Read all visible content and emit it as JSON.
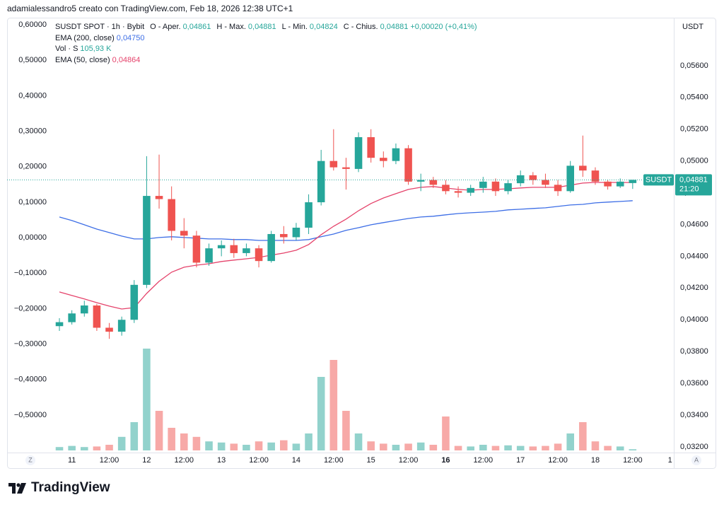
{
  "chart_data": {
    "type": "candlestick",
    "credit": "adamialessandro5 creato con TradingView.com, Feb 18, 2026 12:38 UTC+1",
    "title": "SUSDT SPOT · 1h · Bybit",
    "ohlc_legend": [
      {
        "key": "O - Aper.",
        "label": "0,04861"
      },
      {
        "key": "H - Max.",
        "label": "0,04881"
      },
      {
        "key": "L - Min.",
        "label": "0,04824"
      },
      {
        "key": "C - Chius.",
        "label": "0,04881"
      }
    ],
    "change_label": "+0,00020 (+0,41%)",
    "volume_legend": {
      "name": "Vol · S",
      "label": "105,93 K"
    },
    "up_color": "#26a69a",
    "down_color": "#ef5350",
    "volume_up_color": "#92d2cc",
    "volume_down_color": "#f7a9a7",
    "open": [
      0.0396,
      0.03985,
      0.0404,
      0.0409,
      0.0395,
      0.03925,
      0.04,
      0.0422,
      0.0478,
      0.0476,
      0.0456,
      0.0453,
      0.0436,
      0.0445,
      0.0447,
      0.0442,
      0.0445,
      0.0437,
      0.0454,
      0.0452,
      0.0458,
      0.0474,
      0.05,
      0.0496,
      0.0495,
      0.0515,
      0.0502,
      0.05,
      0.0508,
      0.0487,
      0.0488,
      0.0485,
      0.0481,
      0.048,
      0.0483,
      0.0487,
      0.0481,
      0.0486,
      0.0491,
      0.0488,
      0.0485,
      0.0481,
      0.0497,
      0.0494,
      0.0487,
      0.0484,
      0.04861
    ],
    "high": [
      0.0401,
      0.0406,
      0.0412,
      0.041,
      0.0398,
      0.0402,
      0.0425,
      0.0503,
      0.0504,
      0.0484,
      0.0464,
      0.0456,
      0.0448,
      0.045,
      0.0451,
      0.0448,
      0.0447,
      0.0456,
      0.0459,
      0.0461,
      0.0479,
      0.0507,
      0.052,
      0.0502,
      0.0518,
      0.052,
      0.0506,
      0.0511,
      0.051,
      0.0492,
      0.049,
      0.0488,
      0.0484,
      0.0485,
      0.049,
      0.0489,
      0.0488,
      0.0494,
      0.0493,
      0.0492,
      0.0488,
      0.05,
      0.0516,
      0.0496,
      0.0488,
      0.0489,
      0.04881
    ],
    "low": [
      0.0393,
      0.0397,
      0.0402,
      0.0393,
      0.0388,
      0.039,
      0.0398,
      0.042,
      0.047,
      0.045,
      0.0445,
      0.0433,
      0.0434,
      0.044,
      0.0439,
      0.044,
      0.0433,
      0.0436,
      0.0448,
      0.045,
      0.0454,
      0.0472,
      0.0494,
      0.0482,
      0.0493,
      0.0499,
      0.0496,
      0.0498,
      0.0485,
      0.0481,
      0.0483,
      0.0479,
      0.0477,
      0.0478,
      0.048,
      0.0478,
      0.0479,
      0.0484,
      0.0485,
      0.0483,
      0.0478,
      0.048,
      0.049,
      0.0485,
      0.0482,
      0.0483,
      0.04824
    ],
    "close": [
      0.03985,
      0.0404,
      0.0409,
      0.0395,
      0.03925,
      0.04,
      0.0422,
      0.0478,
      0.0476,
      0.0456,
      0.0453,
      0.0436,
      0.0445,
      0.0447,
      0.0442,
      0.0445,
      0.0437,
      0.0454,
      0.0452,
      0.0458,
      0.0474,
      0.05,
      0.0496,
      0.0495,
      0.0515,
      0.0502,
      0.05,
      0.0508,
      0.0487,
      0.0488,
      0.0485,
      0.0481,
      0.048,
      0.0483,
      0.0487,
      0.0481,
      0.0486,
      0.0491,
      0.0488,
      0.0485,
      0.0481,
      0.0497,
      0.0494,
      0.0487,
      0.0484,
      0.0487,
      0.04881
    ],
    "volume": [
      300,
      400,
      300,
      350,
      500,
      1200,
      2500,
      9000,
      3500,
      2000,
      1500,
      1200,
      800,
      700,
      600,
      500,
      800,
      700,
      900,
      600,
      1500,
      6500,
      8000,
      3500,
      1500,
      800,
      600,
      500,
      600,
      700,
      500,
      3000,
      400,
      350,
      500,
      400,
      450,
      400,
      350,
      400,
      600,
      1500,
      2500,
      800,
      400,
      350,
      105.93
    ],
    "volume_lim": [
      0,
      10000
    ],
    "series": [
      {
        "name": "EMA (200, close)",
        "color": "#3d6ee6",
        "value_label": "0,04750",
        "values": [
          0.04647,
          0.04625,
          0.04598,
          0.04571,
          0.04549,
          0.04527,
          0.04509,
          0.04509,
          0.04518,
          0.04523,
          0.04518,
          0.04514,
          0.04509,
          0.04509,
          0.04505,
          0.04505,
          0.045,
          0.045,
          0.045,
          0.045,
          0.04505,
          0.04523,
          0.0454,
          0.04563,
          0.0458,
          0.04598,
          0.04612,
          0.04625,
          0.04638,
          0.04647,
          0.04652,
          0.04661,
          0.04669,
          0.04674,
          0.04678,
          0.04683,
          0.04692,
          0.04696,
          0.04701,
          0.04705,
          0.04714,
          0.04723,
          0.04727,
          0.04736,
          0.04741,
          0.04745,
          0.0475
        ]
      },
      {
        "name": "EMA (50, close)",
        "color": "#e5436b",
        "value_label": "0,04864",
        "values": [
          0.04175,
          0.04153,
          0.04131,
          0.04108,
          0.04086,
          0.04068,
          0.04077,
          0.04166,
          0.04242,
          0.043,
          0.04331,
          0.04344,
          0.04353,
          0.04367,
          0.04376,
          0.04384,
          0.04393,
          0.04407,
          0.0442,
          0.04438,
          0.04474,
          0.04536,
          0.04589,
          0.04634,
          0.04687,
          0.04732,
          0.04767,
          0.04794,
          0.04821,
          0.04834,
          0.04839,
          0.0483,
          0.04821,
          0.04816,
          0.04821,
          0.04821,
          0.04825,
          0.0483,
          0.04834,
          0.04834,
          0.04834,
          0.04848,
          0.04861,
          0.04865,
          0.04865,
          0.04865,
          0.04864
        ]
      }
    ],
    "xlim": [
      -4.2,
      49.3
    ],
    "xticks": [
      {
        "value": 1,
        "label": "11"
      },
      {
        "value": 4,
        "label": "12:00"
      },
      {
        "value": 7,
        "label": "12"
      },
      {
        "value": 10,
        "label": "12:00"
      },
      {
        "value": 13,
        "label": "13"
      },
      {
        "value": 16,
        "label": "12:00"
      },
      {
        "value": 19,
        "label": "14"
      },
      {
        "value": 22,
        "label": "12:00"
      },
      {
        "value": 25,
        "label": "15"
      },
      {
        "value": 28,
        "label": "12:00"
      },
      {
        "value": 31,
        "label": "16"
      },
      {
        "value": 34,
        "label": "12:00"
      },
      {
        "value": 37,
        "label": "17"
      },
      {
        "value": 40,
        "label": "12:00"
      },
      {
        "value": 43,
        "label": "18"
      },
      {
        "value": 46,
        "label": "12:00"
      },
      {
        "value": 49,
        "label": "1"
      }
    ],
    "bold_xtick": 10,
    "ylabel": "USDT",
    "ylim": [
      0.03164,
      0.05889
    ],
    "yticks": [
      {
        "value": 0.056,
        "label": "0,05600"
      },
      {
        "value": 0.054,
        "label": "0,05400"
      },
      {
        "value": 0.052,
        "label": "0,05200"
      },
      {
        "value": 0.05,
        "label": "0,05000"
      },
      {
        "value": 0.048,
        "label": "0,04800"
      },
      {
        "value": 0.046,
        "label": "0,04600"
      },
      {
        "value": 0.044,
        "label": "0,04400"
      },
      {
        "value": 0.042,
        "label": "0,04200"
      },
      {
        "value": 0.04,
        "label": "0,04000"
      },
      {
        "value": 0.038,
        "label": "0,03800"
      },
      {
        "value": 0.036,
        "label": "0,03600"
      },
      {
        "value": 0.034,
        "label": "0,03400"
      },
      {
        "value": 0.032,
        "label": "0,03200"
      }
    ],
    "y2lim": [
      -0.6056,
      0.614
    ],
    "y2ticks": [
      {
        "value": 0.6,
        "label": "0,60000"
      },
      {
        "value": 0.5,
        "label": "0,50000"
      },
      {
        "value": 0.4,
        "label": "0,40000"
      },
      {
        "value": 0.3,
        "label": "0,30000"
      },
      {
        "value": 0.2,
        "label": "0,20000"
      },
      {
        "value": 0.1,
        "label": "0,10000"
      },
      {
        "value": 0,
        "label": "0,00000"
      },
      {
        "value": -0.1,
        "label": "−0,10000"
      },
      {
        "value": -0.2,
        "label": "−0,20000"
      },
      {
        "value": -0.3,
        "label": "−0,30000"
      },
      {
        "value": -0.4,
        "label": "−0,40000"
      },
      {
        "value": -0.5,
        "label": "−0,50000"
      }
    ],
    "price_label": {
      "name": "SUSDT",
      "value": 0.04881,
      "label": "0,04881",
      "countdown": "21:20",
      "color": "#26a69a"
    },
    "left_corner": "Z",
    "right_corner": "A",
    "grid": false
  },
  "footer": {
    "logo": "TradingView"
  }
}
